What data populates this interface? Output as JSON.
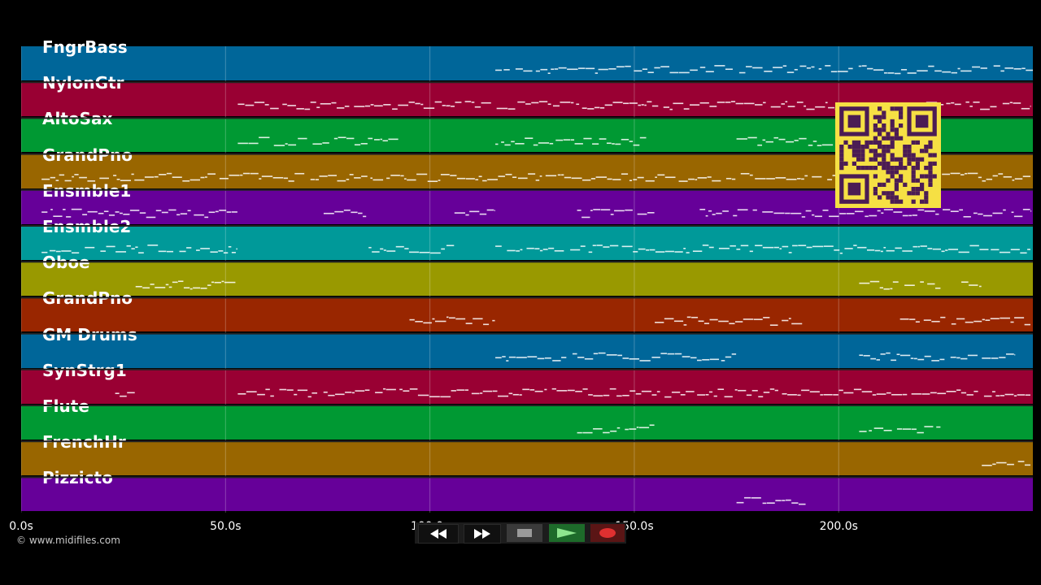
{
  "tracks": [
    {
      "name": "FngrBass",
      "color": "#006699"
    },
    {
      "name": "NylonGtr",
      "color": "#990033"
    },
    {
      "name": "AltoSax",
      "color": "#009933"
    },
    {
      "name": "GrandPno",
      "color": "#996600"
    },
    {
      "name": "Ensmble1",
      "color": "#660099"
    },
    {
      "name": "Ensmble2",
      "color": "#009999"
    },
    {
      "name": "Oboe",
      "color": "#999900"
    },
    {
      "name": "GrandPno",
      "color": "#992600"
    },
    {
      "name": "GM Drums",
      "color": "#006699"
    },
    {
      "name": "SynStrg1",
      "color": "#990033"
    },
    {
      "name": "Flute",
      "color": "#009933"
    },
    {
      "name": "FrenchHr",
      "color": "#996600"
    },
    {
      "name": "Pizzicto",
      "color": "#660099"
    }
  ],
  "timeline": {
    "ticks": [
      "0.0s",
      "50.0s",
      "100.0s",
      "150.0s",
      "200.0s"
    ],
    "tick_values": [
      0,
      50,
      100,
      150,
      200
    ],
    "max_seconds": 247.5
  },
  "copyright": "© www.midifiles.com",
  "transport": {
    "rewind_icon": "rewind-icon",
    "forward_icon": "fast-forward-icon",
    "stop_icon": "stop-icon",
    "play_icon": "play-icon",
    "record_icon": "record-icon"
  },
  "note_segments": [
    [
      [
        116,
        250
      ]
    ],
    [
      [
        53,
        247
      ]
    ],
    [
      [
        53,
        93
      ],
      [
        116,
        153
      ],
      [
        175,
        200
      ]
    ],
    [
      [
        5,
        247
      ]
    ],
    [
      [
        5,
        53
      ],
      [
        74,
        85
      ],
      [
        106,
        116
      ],
      [
        136,
        155
      ],
      [
        166,
        247
      ]
    ],
    [
      [
        5,
        53
      ],
      [
        85,
        106
      ],
      [
        116,
        247
      ]
    ],
    [
      [
        28,
        53
      ],
      [
        205,
        225
      ],
      [
        230,
        235
      ]
    ],
    [
      [
        95,
        116
      ],
      [
        155,
        192
      ],
      [
        215,
        247
      ]
    ],
    [
      [
        116,
        175
      ],
      [
        205,
        243
      ]
    ],
    [
      [
        23,
        29
      ],
      [
        53,
        247
      ]
    ],
    [
      [
        136,
        155
      ],
      [
        205,
        225
      ]
    ],
    [
      [
        235,
        247
      ]
    ],
    [
      [
        175,
        192
      ]
    ]
  ]
}
